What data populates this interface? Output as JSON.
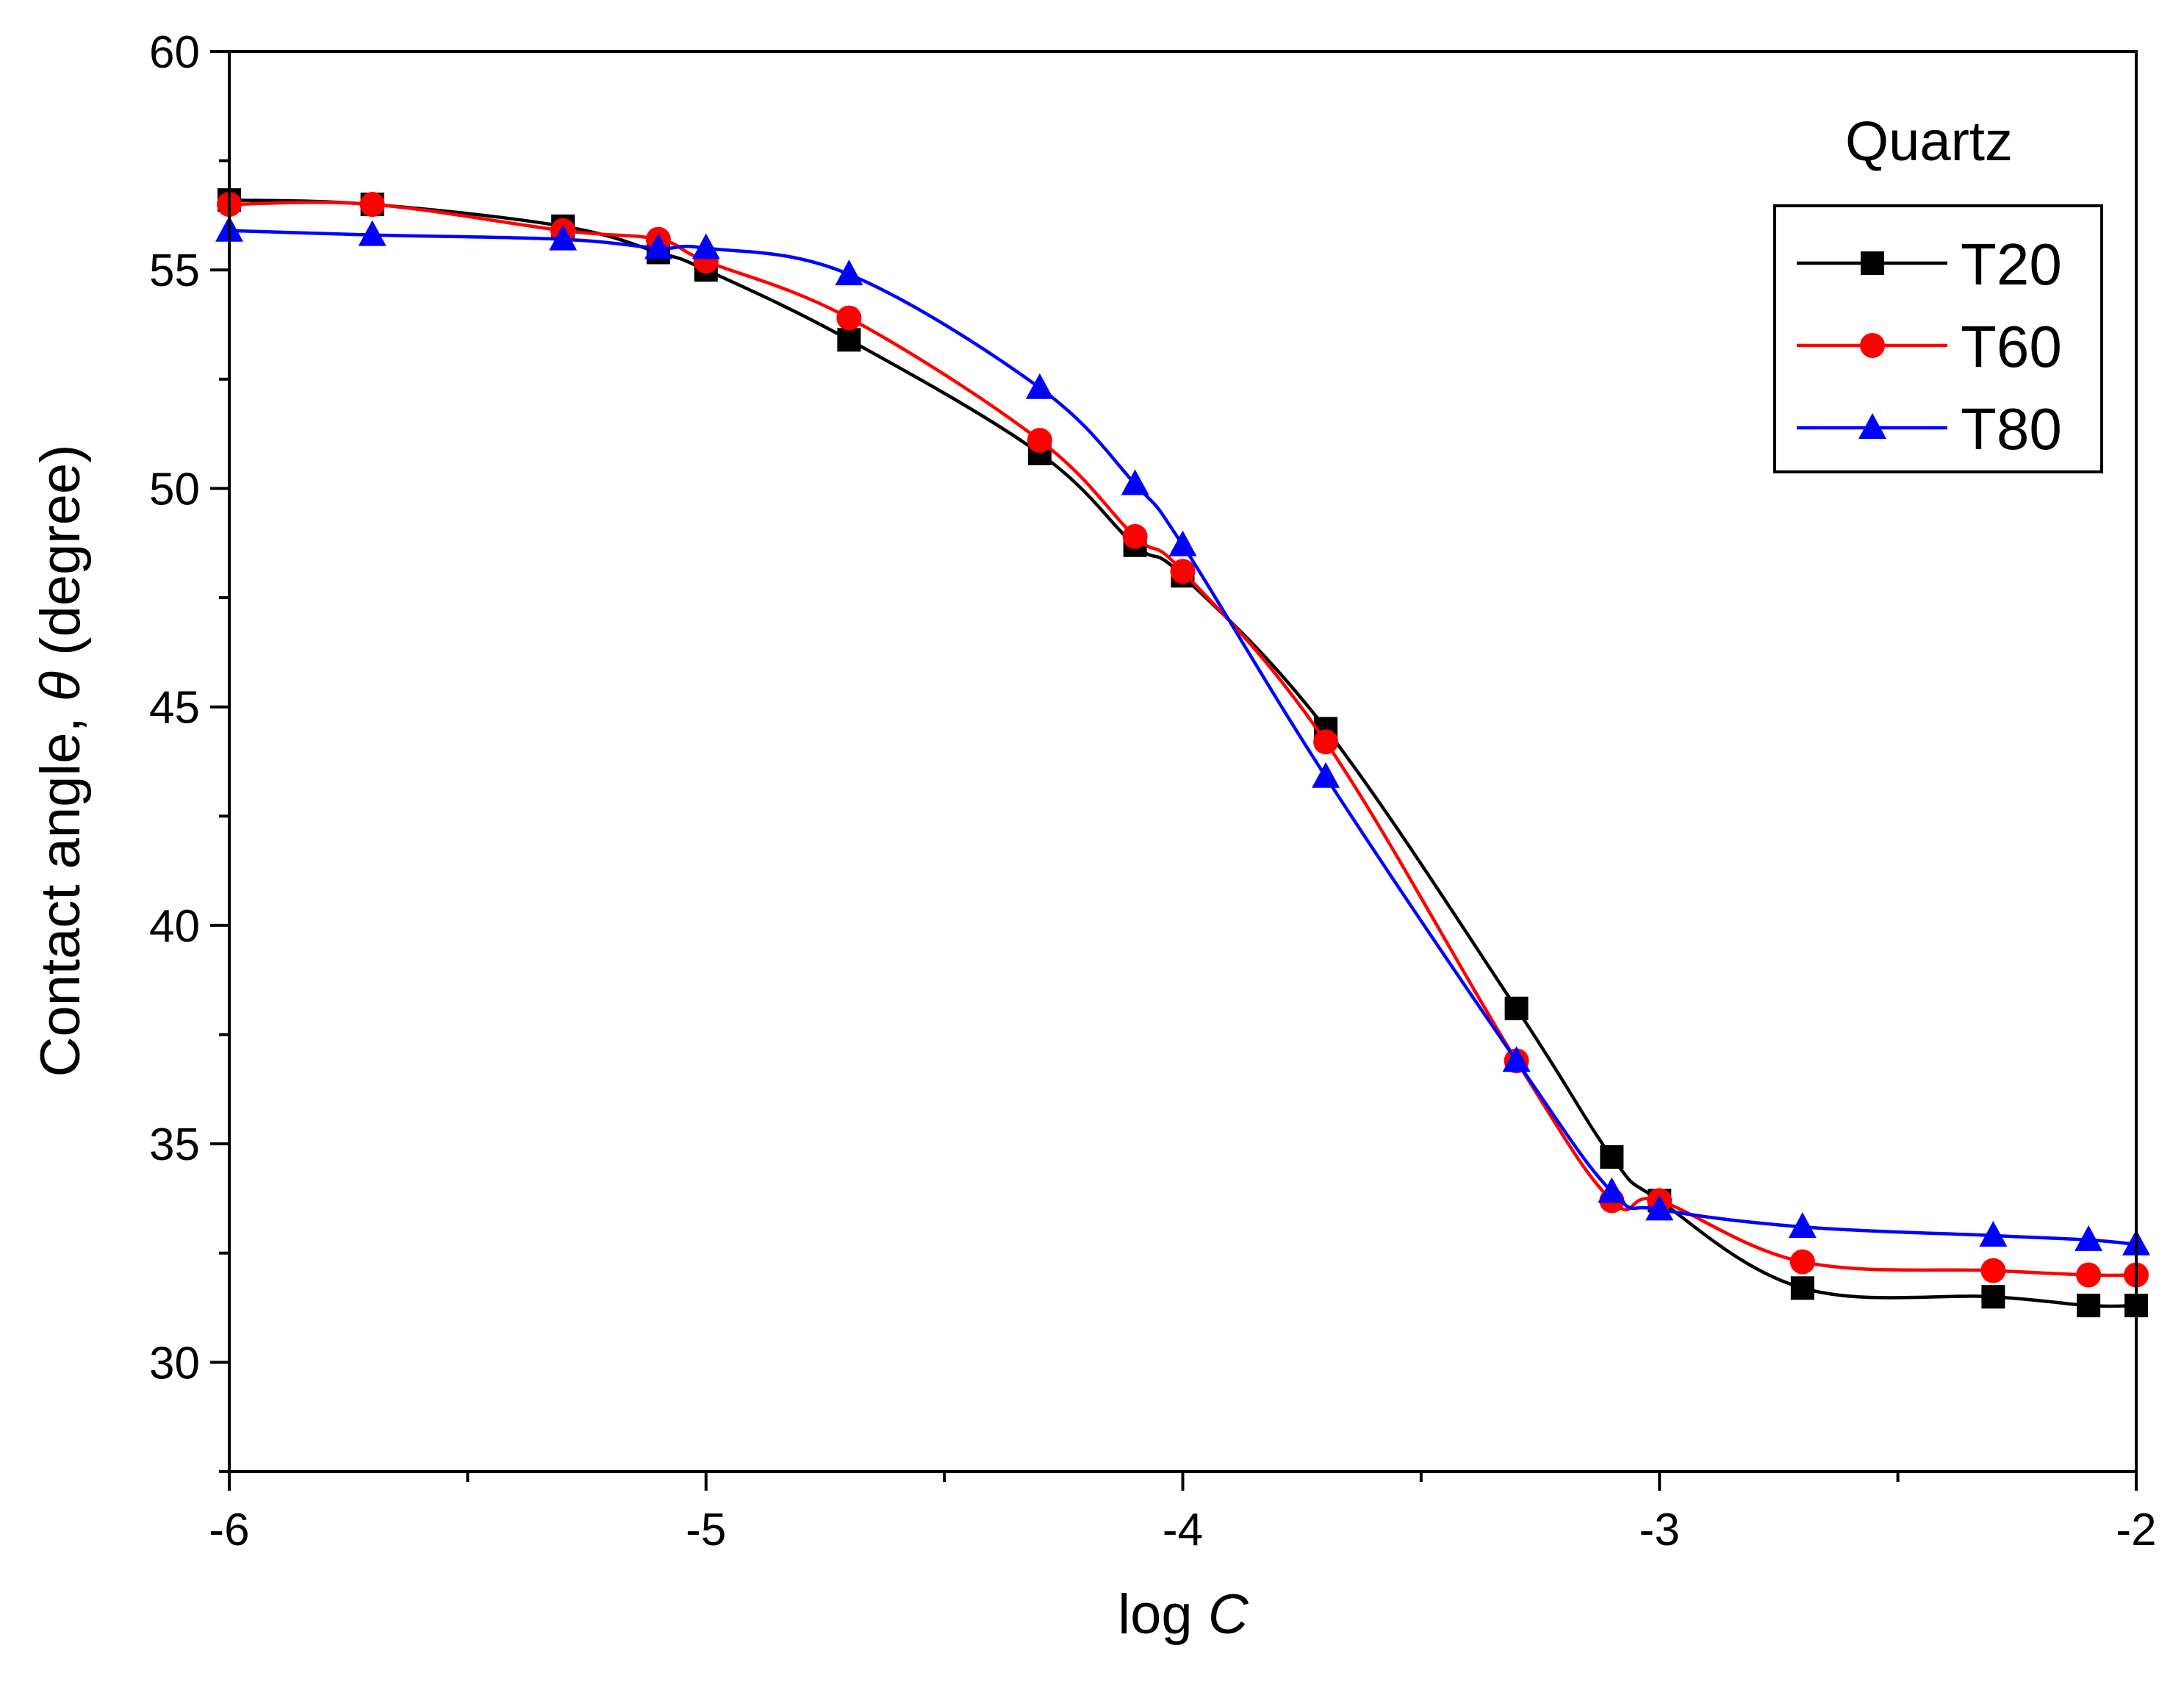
{
  "chart_data": {
    "type": "line",
    "title": "",
    "annotation": "Quartz",
    "xlabel_prefix": "log ",
    "xlabel_var": "C",
    "ylabel_prefix": "Contact angle, ",
    "ylabel_var": "θ",
    "ylabel_suffix": " (degree)",
    "xlim": [
      -6,
      -2
    ],
    "ylim": [
      27.5,
      60
    ],
    "x_ticks": [
      -6,
      -5,
      -4,
      -3,
      -2
    ],
    "x_tick_labels": [
      "-6",
      "-5",
      "-4",
      "-3",
      "-2"
    ],
    "x_minor_ticks": [
      -5.5,
      -4.5,
      -3.5,
      -2.5
    ],
    "y_ticks": [
      30,
      35,
      40,
      45,
      50,
      55,
      60
    ],
    "y_tick_labels": [
      "30",
      "35",
      "40",
      "45",
      "50",
      "55",
      "60"
    ],
    "y_minor_ticks": [
      27.5,
      32.5,
      37.5,
      42.5,
      47.5,
      52.5,
      57.5
    ],
    "legend_position": "top-right",
    "series": [
      {
        "name": "T20",
        "color": "#000000",
        "marker": "square",
        "x": [
          -6,
          -5.7,
          -5.3,
          -5.1,
          -5,
          -4.7,
          -4.3,
          -4.1,
          -4,
          -3.7,
          -3.3,
          -3.1,
          -3,
          -2.7,
          -2.3,
          -2.1,
          -2
        ],
        "y": [
          56.6,
          56.5,
          56.0,
          55.4,
          55.0,
          53.4,
          50.8,
          48.7,
          48.0,
          44.5,
          38.1,
          34.7,
          33.7,
          31.7,
          31.5,
          31.3,
          31.3
        ]
      },
      {
        "name": "T60",
        "color": "#ff0000",
        "marker": "circle",
        "x": [
          -6,
          -5.7,
          -5.3,
          -5.1,
          -5,
          -4.7,
          -4.3,
          -4.1,
          -4,
          -3.7,
          -3.3,
          -3.1,
          -3,
          -2.7,
          -2.3,
          -2.1,
          -2
        ],
        "y": [
          56.5,
          56.5,
          55.9,
          55.7,
          55.2,
          53.9,
          51.1,
          48.9,
          48.1,
          44.2,
          36.9,
          33.7,
          33.7,
          32.3,
          32.1,
          32.0,
          32.0
        ]
      },
      {
        "name": "T80",
        "color": "#0000ff",
        "marker": "triangle",
        "x": [
          -6,
          -5.7,
          -5.3,
          -5.1,
          -5,
          -4.7,
          -4.3,
          -4.1,
          -4,
          -3.7,
          -3.3,
          -3.1,
          -3,
          -2.7,
          -2.3,
          -2.1,
          -2
        ],
        "y": [
          55.9,
          55.8,
          55.7,
          55.5,
          55.5,
          54.9,
          52.3,
          50.1,
          48.7,
          43.4,
          36.9,
          33.9,
          33.5,
          33.1,
          32.9,
          32.8,
          32.7
        ]
      }
    ]
  }
}
